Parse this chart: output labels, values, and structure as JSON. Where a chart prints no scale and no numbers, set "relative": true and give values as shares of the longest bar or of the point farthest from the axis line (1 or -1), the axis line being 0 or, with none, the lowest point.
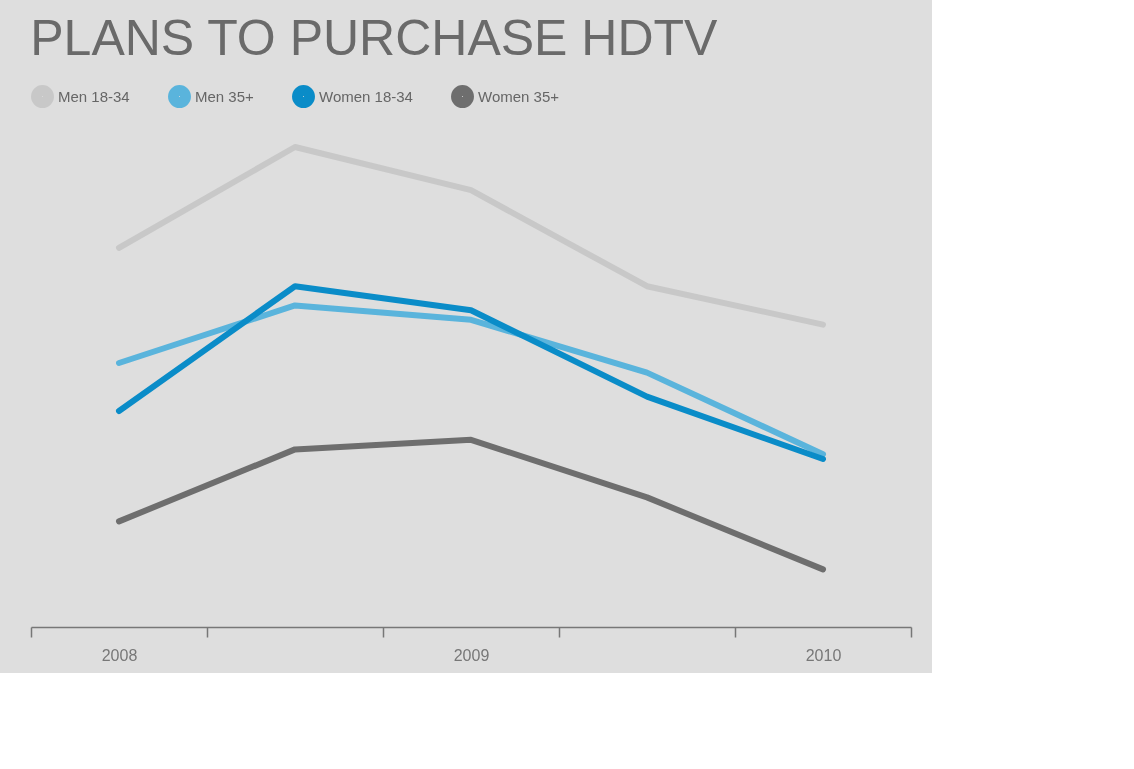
{
  "chart_data": {
    "type": "line",
    "title": "PLANS TO PURCHASE HDTV",
    "relative": true,
    "categories": [
      "2008",
      null,
      "2009",
      null,
      "2010"
    ],
    "series": [
      {
        "name": "Men 18-34",
        "color": "#c8c8c8",
        "values": [
          0.79,
          1,
          0.91,
          0.71,
          0.63
        ]
      },
      {
        "name": "Men 35+",
        "color": "#5ab4dc",
        "values": [
          0.55,
          0.67,
          0.64,
          0.53,
          0.36
        ]
      },
      {
        "name": "Women 18-34",
        "color": "#0a8cc8",
        "values": [
          0.45,
          0.71,
          0.66,
          0.48,
          0.35
        ]
      },
      {
        "name": "Women 35+",
        "color": "#6e6e6e",
        "values": [
          0.22,
          0.37,
          0.39,
          0.27,
          0.12
        ]
      }
    ],
    "legend": "top",
    "marker": "none",
    "line_style": "solid"
  }
}
